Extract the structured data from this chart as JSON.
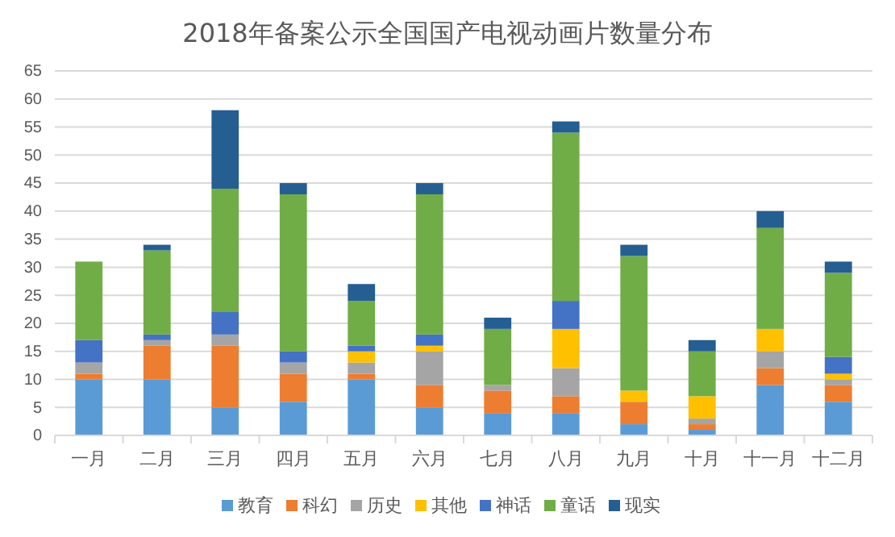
{
  "chart_data": {
    "type": "bar",
    "title": "2018年备案公示全国国产电视动画片数量分布",
    "categories": [
      "一月",
      "二月",
      "三月",
      "四月",
      "五月",
      "六月",
      "七月",
      "八月",
      "九月",
      "十月",
      "十一月",
      "十二月"
    ],
    "stacked": true,
    "ylim": [
      0,
      65
    ],
    "yticks": [
      0,
      5,
      10,
      15,
      20,
      25,
      30,
      35,
      40,
      45,
      50,
      55,
      60,
      65
    ],
    "grid": "y",
    "legend": "bottom",
    "series": [
      {
        "name": "教育",
        "color": "#5b9bd5",
        "values": [
          10,
          10,
          5,
          6,
          10,
          5,
          4,
          4,
          2,
          1,
          9,
          6
        ]
      },
      {
        "name": "科幻",
        "color": "#ed7d31",
        "values": [
          1,
          6,
          11,
          5,
          1,
          4,
          4,
          3,
          4,
          1,
          3,
          3
        ]
      },
      {
        "name": "历史",
        "color": "#a5a5a5",
        "values": [
          2,
          1,
          2,
          2,
          2,
          6,
          1,
          5,
          0,
          1,
          3,
          1
        ]
      },
      {
        "name": "其他",
        "color": "#ffc000",
        "values": [
          0,
          0,
          0,
          0,
          2,
          1,
          0,
          7,
          2,
          4,
          4,
          1
        ]
      },
      {
        "name": "神话",
        "color": "#4472c4",
        "values": [
          4,
          1,
          4,
          2,
          1,
          2,
          0,
          5,
          0,
          0,
          0,
          3
        ]
      },
      {
        "name": "童话",
        "color": "#70ad47",
        "values": [
          14,
          15,
          22,
          28,
          8,
          25,
          10,
          30,
          24,
          8,
          18,
          15
        ]
      },
      {
        "name": "现实",
        "color": "#255e91",
        "values": [
          0,
          1,
          14,
          2,
          3,
          2,
          2,
          2,
          2,
          2,
          3,
          2
        ]
      }
    ]
  }
}
